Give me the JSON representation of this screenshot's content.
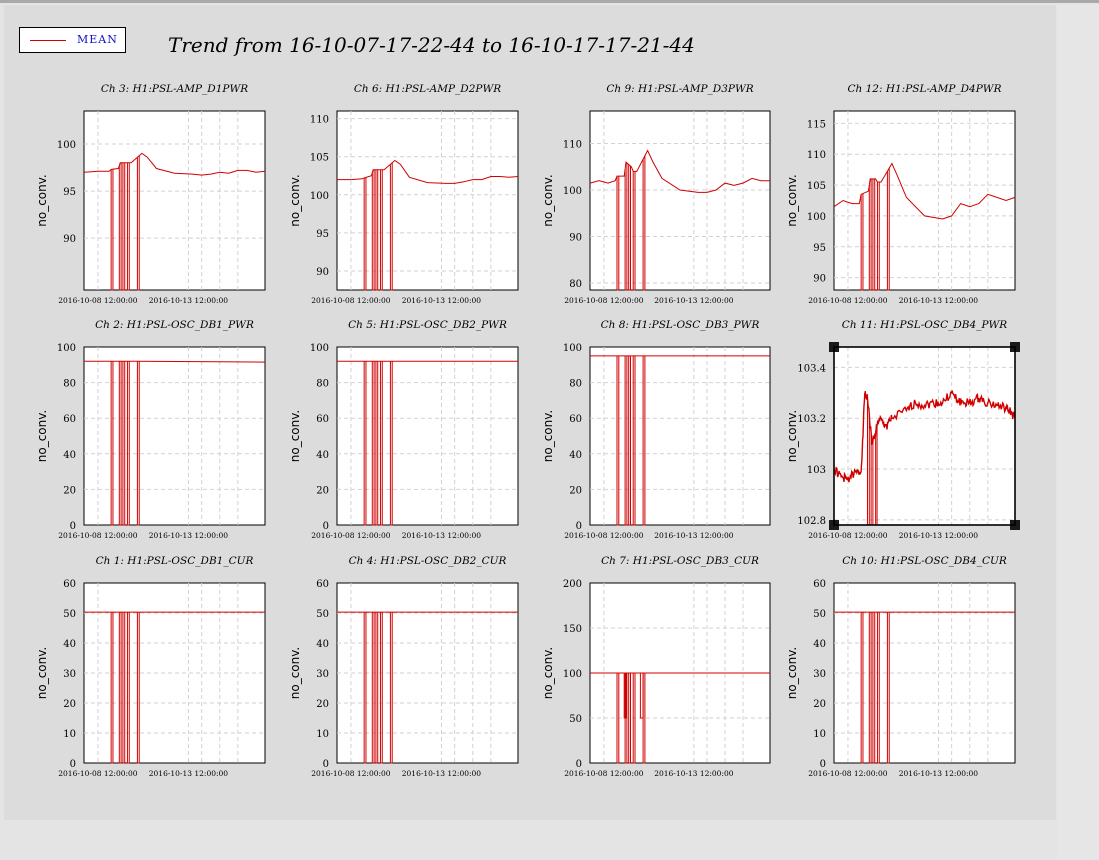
{
  "title": "Trend from 16-10-07-17-22-44 to 16-10-17-17-21-44",
  "legend": {
    "label": "MEAN",
    "color": "#d00000"
  },
  "colors": {
    "series": "#d00000",
    "background": "#dcdcdc",
    "plot_bg": "#ffffff",
    "grid": "#d2d2d2",
    "selection_handle": "#1a1a1a"
  },
  "chart_data": [
    {
      "type": "line",
      "title": "Ch 3: H1:PSL-AMP_D1PWR",
      "ylabel": "no_conv.",
      "ylim": [
        84.5,
        103.5
      ],
      "yticks": [
        90,
        95,
        100
      ],
      "yticklabels": [
        "90",
        "95",
        "100"
      ],
      "xlim": [
        1.0,
        11.0
      ],
      "xticks": [
        1.77,
        6.77
      ],
      "xticklabels": [
        "2016-10-08 12:00:00",
        "2016-10-13 12:00:00"
      ],
      "x": [
        1.0,
        1.8,
        2.4,
        2.5,
        2.9,
        3.0,
        3.3,
        3.4,
        3.6,
        4.2,
        4.5,
        5.0,
        6.0,
        7.0,
        7.5,
        8.0,
        8.5,
        9.0,
        9.5,
        10.0,
        10.5,
        11.0
      ],
      "y": [
        97.0,
        97.1,
        97.1,
        97.3,
        97.4,
        98.0,
        98.0,
        98.0,
        98.0,
        99.0,
        98.6,
        97.4,
        96.9,
        96.8,
        96.7,
        96.8,
        97.0,
        96.9,
        97.2,
        97.2,
        97.0,
        97.1
      ],
      "dropouts": [
        [
          2.5,
          2.6
        ],
        [
          2.95,
          3.05
        ],
        [
          3.15,
          3.25
        ],
        [
          3.4,
          3.5
        ],
        [
          3.95,
          4.05
        ]
      ]
    },
    {
      "type": "line",
      "title": "Ch 6: H1:PSL-AMP_D2PWR",
      "ylabel": "no_conv.",
      "ylim": [
        87.5,
        111.0
      ],
      "yticks": [
        90,
        95,
        100,
        105,
        110
      ],
      "yticklabels": [
        "90",
        "95",
        "100",
        "105",
        "110"
      ],
      "xlim": [
        1.0,
        11.0
      ],
      "xticks": [
        1.77,
        6.77
      ],
      "xticklabels": [
        "2016-10-08 12:00:00",
        "2016-10-13 12:00:00"
      ],
      "x": [
        1.0,
        1.8,
        2.4,
        2.5,
        2.9,
        3.0,
        3.3,
        3.4,
        3.6,
        4.2,
        4.5,
        5.0,
        6.0,
        7.0,
        7.5,
        8.0,
        8.5,
        9.0,
        9.5,
        10.0,
        10.5,
        11.0
      ],
      "y": [
        102.0,
        102.0,
        102.1,
        102.2,
        102.5,
        103.3,
        103.3,
        103.3,
        103.3,
        104.5,
        104.0,
        102.3,
        101.6,
        101.5,
        101.5,
        101.7,
        102.0,
        102.0,
        102.4,
        102.4,
        102.3,
        102.4
      ],
      "dropouts": [
        [
          2.5,
          2.6
        ],
        [
          2.95,
          3.05
        ],
        [
          3.15,
          3.25
        ],
        [
          3.4,
          3.5
        ],
        [
          3.95,
          4.05
        ]
      ]
    },
    {
      "type": "line",
      "title": "Ch 9: H1:PSL-AMP_D3PWR",
      "ylabel": "no_conv.",
      "ylim": [
        78.5,
        117.0
      ],
      "yticks": [
        80,
        90,
        100,
        110
      ],
      "yticklabels": [
        "80",
        "90",
        "100",
        "110"
      ],
      "xlim": [
        1.0,
        11.0
      ],
      "xticks": [
        1.77,
        6.77
      ],
      "xticklabels": [
        "2016-10-08 12:00:00",
        "2016-10-13 12:00:00"
      ],
      "x": [
        1.0,
        1.5,
        2.0,
        2.4,
        2.5,
        2.9,
        3.0,
        3.3,
        3.4,
        3.6,
        4.2,
        4.5,
        5.0,
        6.0,
        7.0,
        7.5,
        8.0,
        8.5,
        9.0,
        9.5,
        10.0,
        10.5,
        11.0
      ],
      "y": [
        101.5,
        102.0,
        101.5,
        102.0,
        103.0,
        103.0,
        106.0,
        105.0,
        104.0,
        104.0,
        108.5,
        106.0,
        102.5,
        100.0,
        99.5,
        99.5,
        100.0,
        101.5,
        101.0,
        101.5,
        102.5,
        102.0,
        102.0
      ],
      "dropouts": [
        [
          2.5,
          2.6
        ],
        [
          2.95,
          3.05
        ],
        [
          3.15,
          3.25
        ],
        [
          3.4,
          3.5
        ],
        [
          3.95,
          4.05
        ]
      ]
    },
    {
      "type": "line",
      "title": "Ch 12: H1:PSL-AMP_D4PWR",
      "ylabel": "no_conv.",
      "ylim": [
        88.0,
        117.0
      ],
      "yticks": [
        90,
        95,
        100,
        105,
        110,
        115
      ],
      "yticklabels": [
        "90",
        "95",
        "100",
        "105",
        "110",
        "115"
      ],
      "xlim": [
        1.0,
        11.0
      ],
      "xticks": [
        1.77,
        6.77
      ],
      "xticklabels": [
        "2016-10-08 12:00:00",
        "2016-10-13 12:00:00"
      ],
      "x": [
        1.0,
        1.5,
        2.0,
        2.4,
        2.5,
        2.9,
        3.0,
        3.3,
        3.4,
        3.6,
        4.2,
        4.5,
        5.0,
        6.0,
        7.0,
        7.5,
        8.0,
        8.5,
        9.0,
        9.5,
        10.0,
        10.5,
        11.0
      ],
      "y": [
        101.5,
        102.5,
        102.0,
        102.0,
        103.5,
        104.0,
        106.0,
        106.0,
        105.5,
        105.5,
        108.5,
        106.5,
        103.0,
        100.0,
        99.5,
        100.0,
        102.0,
        101.5,
        102.0,
        103.5,
        103.0,
        102.5,
        103.0
      ],
      "dropouts": [
        [
          2.5,
          2.6
        ],
        [
          2.95,
          3.05
        ],
        [
          3.15,
          3.25
        ],
        [
          3.4,
          3.5
        ],
        [
          3.95,
          4.05
        ]
      ]
    },
    {
      "type": "line",
      "title": "Ch 2: H1:PSL-OSC_DB1_PWR",
      "ylabel": "no_conv.",
      "ylim": [
        0,
        100
      ],
      "yticks": [
        0,
        20,
        40,
        60,
        80,
        100
      ],
      "yticklabels": [
        "0",
        "20",
        "40",
        "60",
        "80",
        "100"
      ],
      "xlim": [
        1.0,
        11.0
      ],
      "xticks": [
        1.77,
        6.77
      ],
      "xticklabels": [
        "2016-10-08 12:00:00",
        "2016-10-13 12:00:00"
      ],
      "x": [
        1.0,
        3.0,
        4.0,
        11.0
      ],
      "y": [
        92.0,
        92.0,
        92.0,
        91.5
      ],
      "dropouts": [
        [
          2.5,
          2.6
        ],
        [
          2.95,
          3.05
        ],
        [
          3.15,
          3.25
        ],
        [
          3.4,
          3.5
        ],
        [
          3.95,
          4.05
        ]
      ]
    },
    {
      "type": "line",
      "title": "Ch 5: H1:PSL-OSC_DB2_PWR",
      "ylabel": "no_conv.",
      "ylim": [
        0,
        100
      ],
      "yticks": [
        0,
        20,
        40,
        60,
        80,
        100
      ],
      "yticklabels": [
        "0",
        "20",
        "40",
        "60",
        "80",
        "100"
      ],
      "xlim": [
        1.0,
        11.0
      ],
      "xticks": [
        1.77,
        6.77
      ],
      "xticklabels": [
        "2016-10-08 12:00:00",
        "2016-10-13 12:00:00"
      ],
      "x": [
        1.0,
        3.0,
        4.0,
        11.0
      ],
      "y": [
        92.0,
        92.0,
        92.0,
        92.0
      ],
      "dropouts": [
        [
          2.5,
          2.6
        ],
        [
          2.95,
          3.05
        ],
        [
          3.15,
          3.25
        ],
        [
          3.4,
          3.5
        ],
        [
          3.95,
          4.05
        ]
      ]
    },
    {
      "type": "line",
      "title": "Ch 8: H1:PSL-OSC_DB3_PWR",
      "ylabel": "no_conv.",
      "ylim": [
        0,
        100
      ],
      "yticks": [
        0,
        20,
        40,
        60,
        80,
        100
      ],
      "yticklabels": [
        "0",
        "20",
        "40",
        "60",
        "80",
        "100"
      ],
      "xlim": [
        1.0,
        11.0
      ],
      "xticks": [
        1.77,
        6.77
      ],
      "xticklabels": [
        "2016-10-08 12:00:00",
        "2016-10-13 12:00:00"
      ],
      "x": [
        1.0,
        3.0,
        4.0,
        11.0
      ],
      "y": [
        95.0,
        95.0,
        95.0,
        95.0
      ],
      "dropouts": [
        [
          2.5,
          2.6
        ],
        [
          2.95,
          3.05
        ],
        [
          3.15,
          3.25
        ],
        [
          3.4,
          3.5
        ],
        [
          3.95,
          4.05
        ]
      ]
    },
    {
      "type": "line",
      "title": "Ch 11: H1:PSL-OSC_DB4_PWR",
      "ylabel": "no_conv.",
      "ylim": [
        102.78,
        103.48
      ],
      "yticks": [
        102.8,
        103.0,
        103.2,
        103.4
      ],
      "yticklabels": [
        "102.8",
        "103",
        "103.2",
        "103.4"
      ],
      "xlim": [
        1.0,
        11.0
      ],
      "xticks": [
        1.77,
        6.77
      ],
      "xticklabels": [
        "2016-10-08 12:00:00",
        "2016-10-13 12:00:00"
      ],
      "noisy": true,
      "selected": true,
      "x": [
        1.0,
        1.4,
        1.7,
        2.1,
        2.5,
        2.7,
        2.85,
        3.1,
        3.5,
        3.7,
        3.9,
        4.2,
        5.0,
        5.5,
        6.0,
        6.5,
        7.0,
        7.5,
        7.8,
        8.2,
        8.6,
        9.0,
        9.5,
        10.0,
        10.4,
        10.7,
        11.0
      ],
      "y": [
        103.0,
        102.97,
        102.96,
        102.98,
        102.99,
        103.3,
        103.28,
        103.1,
        103.2,
        103.18,
        103.17,
        103.2,
        103.23,
        103.26,
        103.25,
        103.26,
        103.26,
        103.3,
        103.27,
        103.26,
        103.26,
        103.28,
        103.26,
        103.25,
        103.24,
        103.23,
        103.2
      ],
      "dropouts": [
        [
          2.85,
          2.95
        ],
        [
          3.05,
          3.15
        ],
        [
          3.3,
          3.38
        ]
      ]
    },
    {
      "type": "line",
      "title": "Ch 1: H1:PSL-OSC_DB1_CUR",
      "ylabel": "no_conv.",
      "ylim": [
        0,
        60
      ],
      "yticks": [
        0,
        10,
        20,
        30,
        40,
        50,
        60
      ],
      "yticklabels": [
        "0",
        "10",
        "20",
        "30",
        "40",
        "50",
        "60"
      ],
      "xlim": [
        1.0,
        11.0
      ],
      "xticks": [
        1.77,
        6.77
      ],
      "xticklabels": [
        "2016-10-08 12:00:00",
        "2016-10-13 12:00:00"
      ],
      "x": [
        1.0,
        11.0
      ],
      "y": [
        50.3,
        50.3
      ],
      "dropouts": [
        [
          2.5,
          2.6
        ],
        [
          2.95,
          3.05
        ],
        [
          3.15,
          3.25
        ],
        [
          3.4,
          3.5
        ],
        [
          3.95,
          4.05
        ]
      ]
    },
    {
      "type": "line",
      "title": "Ch 4: H1:PSL-OSC_DB2_CUR",
      "ylabel": "no_conv.",
      "ylim": [
        0,
        60
      ],
      "yticks": [
        0,
        10,
        20,
        30,
        40,
        50,
        60
      ],
      "yticklabels": [
        "0",
        "10",
        "20",
        "30",
        "40",
        "50",
        "60"
      ],
      "xlim": [
        1.0,
        11.0
      ],
      "xticks": [
        1.77,
        6.77
      ],
      "xticklabels": [
        "2016-10-08 12:00:00",
        "2016-10-13 12:00:00"
      ],
      "x": [
        1.0,
        11.0
      ],
      "y": [
        50.3,
        50.3
      ],
      "dropouts": [
        [
          2.5,
          2.6
        ],
        [
          2.95,
          3.05
        ],
        [
          3.15,
          3.25
        ],
        [
          3.4,
          3.5
        ],
        [
          3.95,
          4.05
        ]
      ]
    },
    {
      "type": "line",
      "title": "Ch 7: H1:PSL-OSC_DB3_CUR",
      "ylabel": "no_conv.",
      "ylim": [
        0,
        200
      ],
      "yticks": [
        0,
        50,
        100,
        150,
        200
      ],
      "yticklabels": [
        "0",
        "50",
        "100",
        "150",
        "200"
      ],
      "xlim": [
        1.0,
        11.0
      ],
      "xticks": [
        1.77,
        6.77
      ],
      "xticklabels": [
        "2016-10-08 12:00:00",
        "2016-10-13 12:00:00"
      ],
      "x": [
        1.0,
        11.0
      ],
      "y": [
        100.0,
        100.0
      ],
      "dropouts": [
        [
          2.5,
          2.6
        ],
        [
          2.95,
          3.05
        ],
        [
          3.15,
          3.25
        ],
        [
          3.4,
          3.5
        ],
        [
          3.95,
          4.05
        ]
      ],
      "steps": [
        [
          2.9,
          3.0,
          50
        ],
        [
          3.8,
          3.95,
          50
        ]
      ]
    },
    {
      "type": "line",
      "title": "Ch 10: H1:PSL-OSC_DB4_CUR",
      "ylabel": "no_conv.",
      "ylim": [
        0,
        60
      ],
      "yticks": [
        0,
        10,
        20,
        30,
        40,
        50,
        60
      ],
      "yticklabels": [
        "0",
        "10",
        "20",
        "30",
        "40",
        "50",
        "60"
      ],
      "xlim": [
        1.0,
        11.0
      ],
      "xticks": [
        1.77,
        6.77
      ],
      "xticklabels": [
        "2016-10-08 12:00:00",
        "2016-10-13 12:00:00"
      ],
      "x": [
        1.0,
        11.0
      ],
      "y": [
        50.3,
        50.3
      ],
      "dropouts": [
        [
          2.5,
          2.6
        ],
        [
          2.95,
          3.05
        ],
        [
          3.15,
          3.25
        ],
        [
          3.4,
          3.5
        ],
        [
          3.95,
          4.05
        ]
      ]
    }
  ]
}
